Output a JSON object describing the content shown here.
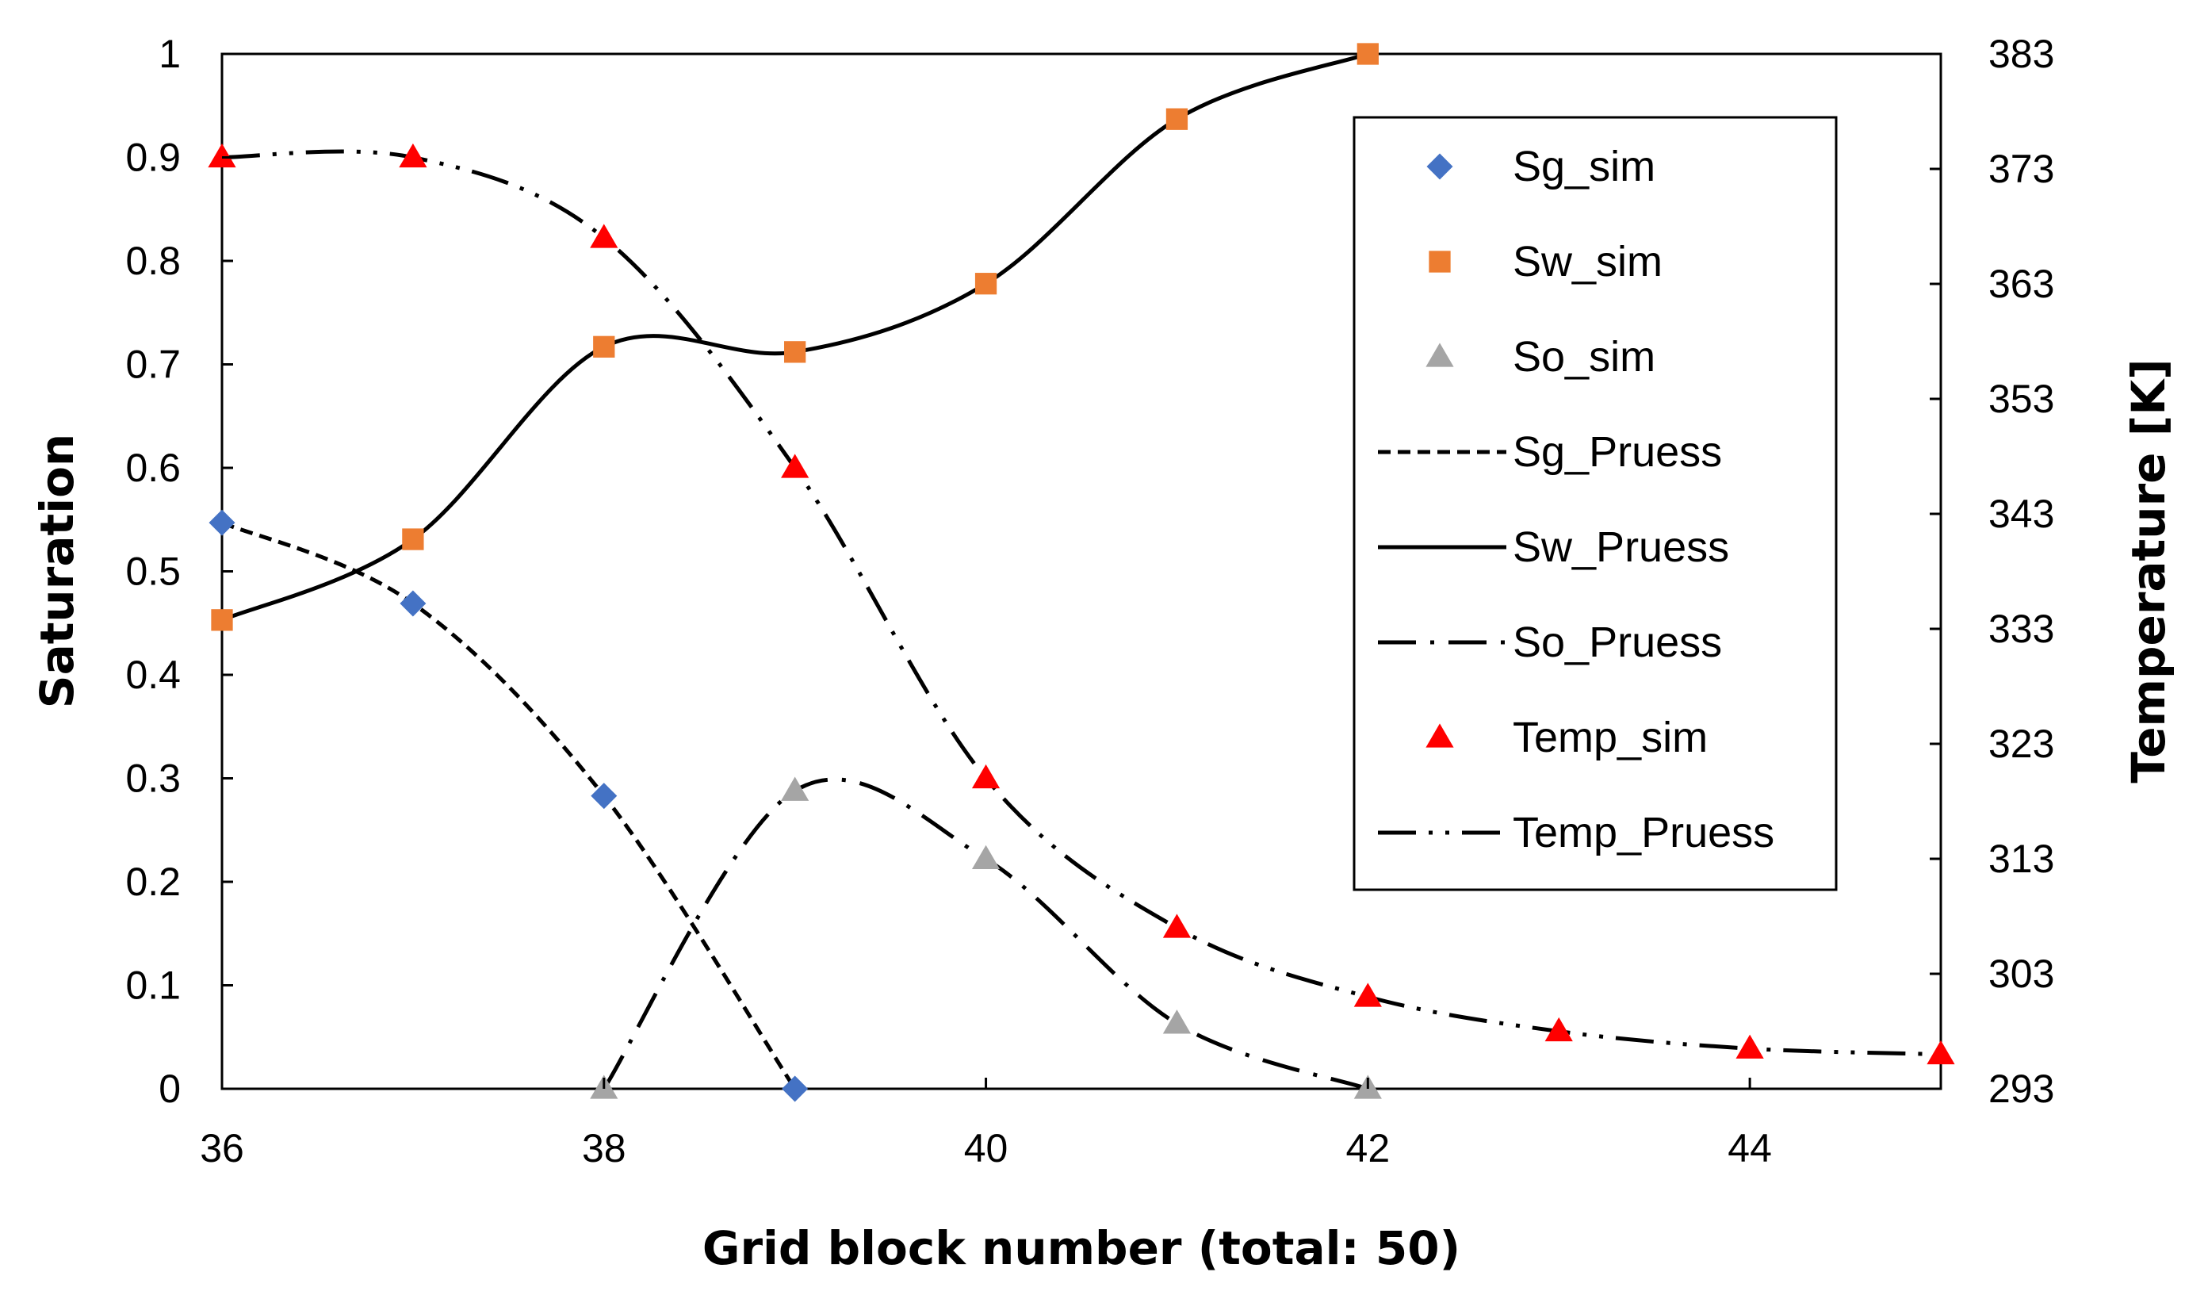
{
  "chart_data": {
    "type": "scatter",
    "x_axis": {
      "label": "Grid block number (total: 50)",
      "range": [
        36,
        45
      ],
      "ticks": [
        36,
        38,
        40,
        42,
        44
      ]
    },
    "y_axis_left": {
      "label": "Saturation",
      "range": [
        0,
        1
      ],
      "ticks": [
        "0",
        "0.1",
        "0.2",
        "0.3",
        "0.4",
        "0.5",
        "0.6",
        "0.7",
        "0.8",
        "0.9",
        "1"
      ]
    },
    "y_axis_right": {
      "label": "Temperature [K]",
      "range": [
        293,
        383
      ],
      "ticks": [
        "293",
        "303",
        "313",
        "323",
        "333",
        "343",
        "353",
        "363",
        "373",
        "383"
      ]
    },
    "grid": false,
    "legend_position": "upper-right",
    "series": [
      {
        "name": "Sg_sim",
        "kind": "marker",
        "marker": "diamond",
        "color": "#4472C4",
        "axis": "left",
        "x": [
          36,
          37,
          38,
          39
        ],
        "y": [
          0.547,
          0.469,
          0.283,
          0.0
        ]
      },
      {
        "name": "Sw_sim",
        "kind": "marker",
        "marker": "square",
        "color": "#ED7D31",
        "axis": "left",
        "x": [
          36,
          37,
          38,
          39,
          40,
          41,
          42
        ],
        "y": [
          0.453,
          0.531,
          0.717,
          0.712,
          0.778,
          0.937,
          1.0
        ]
      },
      {
        "name": "So_sim",
        "kind": "marker",
        "marker": "triangle",
        "color": "#A5A5A5",
        "axis": "left",
        "x": [
          38,
          39,
          40,
          41,
          42
        ],
        "y": [
          0.0,
          0.288,
          0.222,
          0.063,
          0.0
        ]
      },
      {
        "name": "Sg_Pruess",
        "kind": "line",
        "dash": "short-dash",
        "color": "#000000",
        "axis": "left",
        "x": [
          36,
          37,
          38,
          39
        ],
        "y": [
          0.547,
          0.469,
          0.283,
          0.0
        ]
      },
      {
        "name": "Sw_Pruess",
        "kind": "line",
        "dash": "solid",
        "color": "#000000",
        "axis": "left",
        "x": [
          36,
          37,
          38,
          39,
          40,
          41,
          42
        ],
        "y": [
          0.453,
          0.531,
          0.717,
          0.712,
          0.778,
          0.937,
          1.0
        ]
      },
      {
        "name": "So_Pruess",
        "kind": "line",
        "dash": "dash-dot",
        "color": "#000000",
        "axis": "left",
        "x": [
          38,
          39,
          40,
          41,
          42
        ],
        "y": [
          0.0,
          0.288,
          0.222,
          0.063,
          0.0
        ]
      },
      {
        "name": "Temp_sim",
        "kind": "marker",
        "marker": "triangle",
        "color": "#FF0000",
        "axis": "right",
        "x": [
          36,
          37,
          38,
          39,
          40,
          41,
          42,
          43,
          44,
          45
        ],
        "y": [
          374,
          374,
          367,
          347,
          320,
          307,
          301,
          298,
          296.5,
          296
        ]
      },
      {
        "name": "Temp_Pruess",
        "kind": "line",
        "dash": "dash-dot-dot",
        "color": "#000000",
        "axis": "right",
        "x": [
          36,
          37,
          38,
          39,
          40,
          41,
          42,
          43,
          44,
          45
        ],
        "y": [
          374,
          374,
          367,
          347,
          320,
          307,
          301,
          298,
          296.5,
          296
        ]
      }
    ]
  }
}
